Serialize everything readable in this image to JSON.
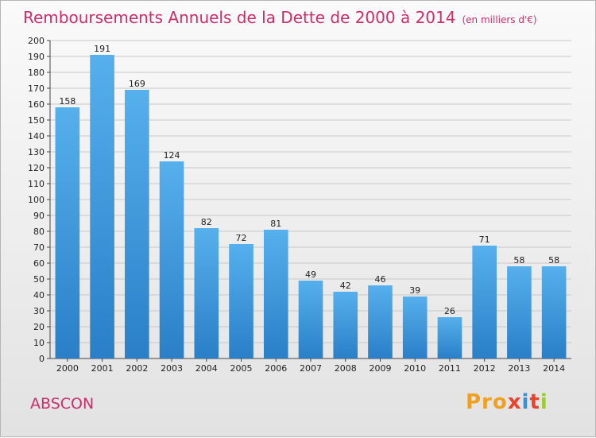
{
  "chart_data": {
    "type": "bar",
    "title": "Remboursements Annuels de la Dette de 2000 à 2014",
    "subtitle": "(en milliers d'€)",
    "categories": [
      "2000",
      "2001",
      "2002",
      "2003",
      "2004",
      "2005",
      "2006",
      "2007",
      "2008",
      "2009",
      "2010",
      "2011",
      "2012",
      "2013",
      "2014"
    ],
    "values": [
      158,
      191,
      169,
      124,
      82,
      72,
      81,
      49,
      42,
      46,
      39,
      26,
      71,
      58,
      58
    ],
    "xlabel": "",
    "ylabel": "",
    "ylim": [
      0,
      200
    ],
    "ytick_step": 10,
    "grid": true,
    "bar_color": "#3f9be0"
  },
  "footer": {
    "commune": "ABSCON",
    "brand": [
      "Pro",
      "x",
      "i",
      "t",
      "i"
    ]
  }
}
